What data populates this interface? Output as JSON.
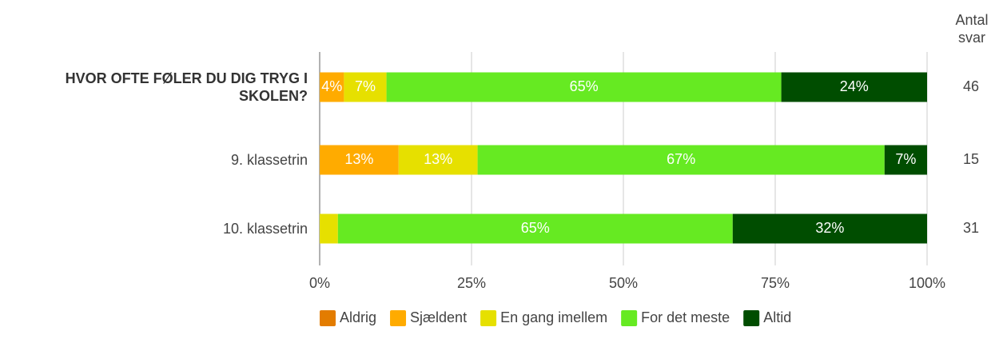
{
  "chart_data": {
    "type": "stacked_barh",
    "categories": [
      "HVOR OFTE FØLER DU DIG TRYG I SKOLEN?",
      "9. klassetrin",
      "10. klassetrin"
    ],
    "series": [
      {
        "name": "Aldrig",
        "color": "#e37c00",
        "values": [
          0,
          0,
          0
        ],
        "value_labels": [
          null,
          null,
          null
        ]
      },
      {
        "name": "Sjældent",
        "color": "#ffab00",
        "values": [
          4,
          13,
          0
        ],
        "value_labels": [
          "4%",
          "13%",
          null
        ]
      },
      {
        "name": "En gang imellem",
        "color": "#e6e000",
        "values": [
          7,
          13,
          3
        ],
        "value_labels": [
          "7%",
          "13%",
          null
        ]
      },
      {
        "name": "For det meste",
        "color": "#66ea22",
        "values": [
          65,
          67,
          65
        ],
        "value_labels": [
          "65%",
          "67%",
          "65%"
        ]
      },
      {
        "name": "Altid",
        "color": "#004d00",
        "values": [
          24,
          7,
          32
        ],
        "value_labels": [
          "24%",
          "7%",
          "32%"
        ]
      }
    ],
    "xlim": [
      0,
      100
    ],
    "xticks": [
      {
        "value": 0,
        "label": "0%"
      },
      {
        "value": 25,
        "label": "25%"
      },
      {
        "value": 50,
        "label": "50%"
      },
      {
        "value": 75,
        "label": "75%"
      },
      {
        "value": 100,
        "label": "100%"
      }
    ],
    "grid": true,
    "respondents_title": "Antal svar",
    "respondents": [
      46,
      15,
      31
    ]
  }
}
